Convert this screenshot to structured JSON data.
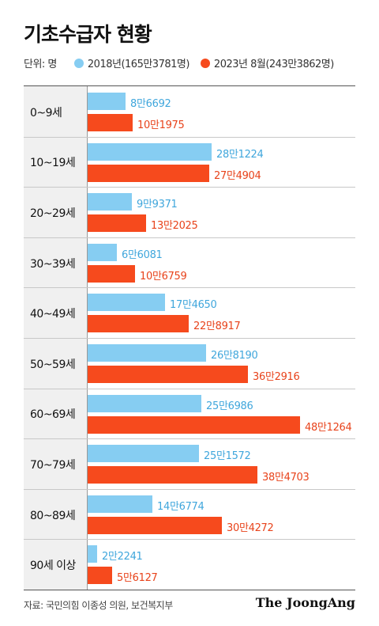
{
  "title": "기초수급자 현황",
  "legend": {
    "unit": "단위: 명",
    "series1": "2018년(165만3781명)",
    "series2": "2023년 8월(243만3862명)"
  },
  "colors": {
    "series1": "#86cdf2",
    "series2": "#f64a1d",
    "series1_text": "#3fa6dc",
    "series2_text": "#e8431b"
  },
  "chart_data": {
    "type": "bar",
    "orientation": "horizontal",
    "categories": [
      "0~9세",
      "10~19세",
      "20~29세",
      "30~39세",
      "40~49세",
      "50~59세",
      "60~69세",
      "70~79세",
      "80~89세",
      "90세 이상"
    ],
    "series": [
      {
        "name": "2018년(165만3781명)",
        "values": [
          86692,
          281224,
          99371,
          66081,
          174650,
          268190,
          256986,
          251572,
          146774,
          22241
        ],
        "labels": [
          "8만6692",
          "28만1224",
          "9만9371",
          "6만6081",
          "17만4650",
          "26만8190",
          "25만6986",
          "25만1572",
          "14만6774",
          "2만2241"
        ]
      },
      {
        "name": "2023년 8월(243만3862명)",
        "values": [
          101975,
          274904,
          132025,
          106759,
          228917,
          362916,
          481264,
          384703,
          304272,
          56127
        ],
        "labels": [
          "10만1975",
          "27만4904",
          "13만2025",
          "10만6759",
          "22만8917",
          "36만2916",
          "48만1264",
          "38만4703",
          "30만4272",
          "5만6127"
        ]
      }
    ],
    "xlim": [
      0,
      500000
    ]
  },
  "source": "자료: 국민의힘 이종성 의원, 보건복지부",
  "brand": "The JoongAng"
}
